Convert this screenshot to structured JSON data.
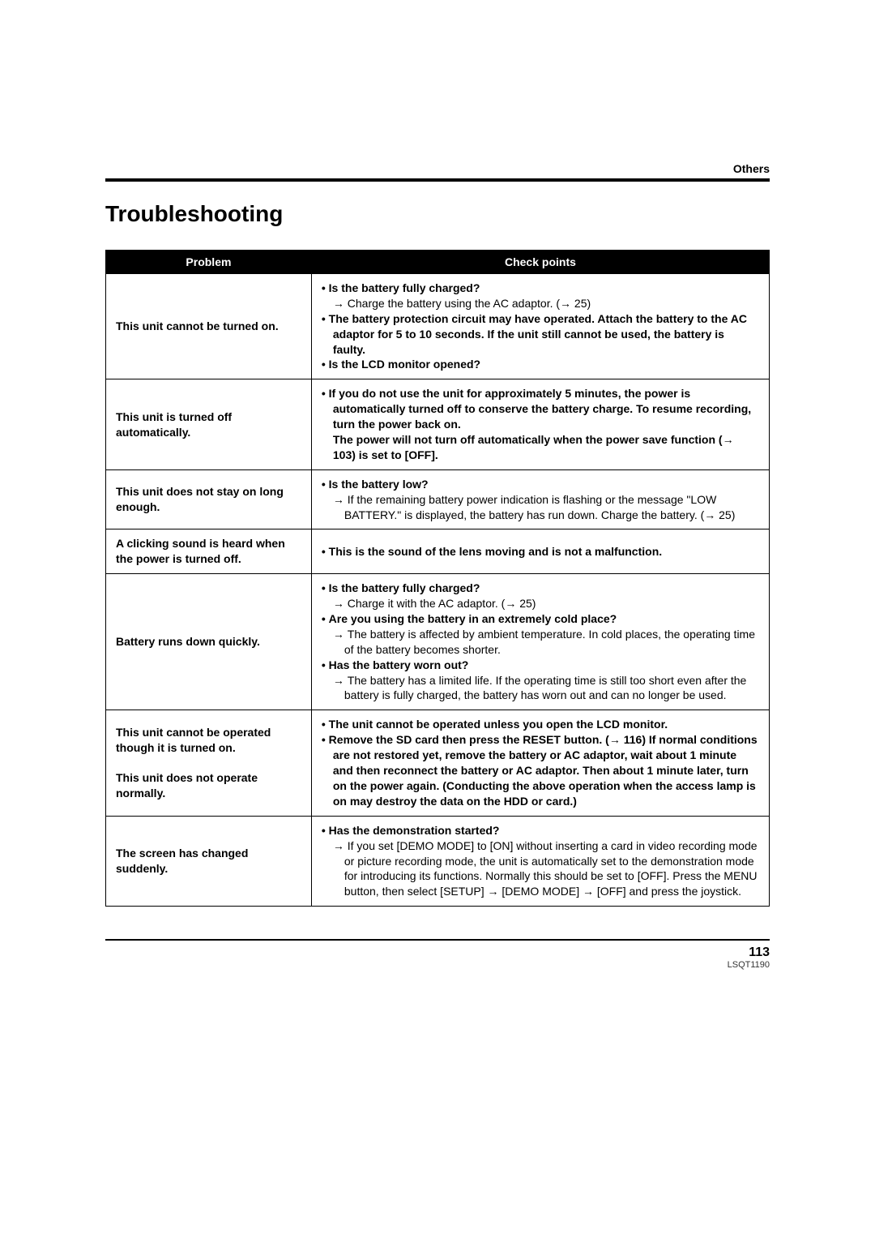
{
  "header_label": "Others",
  "title": "Troubleshooting",
  "columns": {
    "problem": "Problem",
    "checks": "Check points"
  },
  "rows": [
    {
      "problem": "This unit cannot be turned on.",
      "checks": [
        {
          "type": "bold",
          "text": "Is the battery fully charged?"
        },
        {
          "type": "sub",
          "text": "Charge the battery using the AC adaptor. (→ 25)"
        },
        {
          "type": "bold",
          "text": "The battery protection circuit may have operated. Attach the battery to the AC adaptor for 5 to 10 seconds. If the unit still cannot be used, the battery is faulty."
        },
        {
          "type": "bold",
          "text": "Is the LCD monitor opened?"
        }
      ]
    },
    {
      "problem": "This unit is turned off automatically.",
      "checks": [
        {
          "type": "bold",
          "text": "If you do not use the unit for approximately 5 minutes, the power is automatically turned off to conserve the battery charge. To resume recording, turn the power back on.\nThe power will not turn off automatically when the power save function (→ 103) is set to [OFF]."
        }
      ]
    },
    {
      "problem": "This unit does not stay on long enough.",
      "checks": [
        {
          "type": "bold",
          "text": "Is the battery low?"
        },
        {
          "type": "sub",
          "text": "If the remaining battery power indication is flashing or the message \"LOW BATTERY.\" is displayed, the battery has run down. Charge the battery. (→ 25)"
        }
      ]
    },
    {
      "problem": "A clicking sound is heard when the power is turned off.",
      "checks": [
        {
          "type": "bold",
          "text": "This is the sound of the lens moving and is not a malfunction."
        }
      ]
    },
    {
      "problem": "Battery runs down quickly.",
      "checks": [
        {
          "type": "bold",
          "text": "Is the battery fully charged?"
        },
        {
          "type": "sub",
          "text": "Charge it with the AC adaptor. (→ 25)"
        },
        {
          "type": "bold",
          "text": "Are you using the battery in an extremely cold place?"
        },
        {
          "type": "sub",
          "text": "The battery is affected by ambient temperature. In cold places, the operating time of the battery becomes shorter."
        },
        {
          "type": "bold",
          "text": "Has the battery worn out?"
        },
        {
          "type": "sub",
          "text": "The battery has a limited life. If the operating time is still too short even after the battery is fully charged, the battery has worn out and can no longer be used."
        }
      ]
    },
    {
      "problem": "This unit cannot be operated though it is turned on.\n\nThis unit does not operate normally.",
      "checks": [
        {
          "type": "bold",
          "text": "The unit cannot be operated unless you open the LCD monitor."
        },
        {
          "type": "bold",
          "text": "Remove the SD card then press the RESET button. (→ 116) If normal conditions are not restored yet, remove the battery or AC adaptor, wait about 1 minute and then reconnect the battery or AC adaptor. Then about 1 minute later, turn on the power again. (Conducting the above operation when the access lamp is on may destroy the data on the HDD or card.)"
        }
      ]
    },
    {
      "problem": "The screen has changed suddenly.",
      "checks": [
        {
          "type": "bold",
          "text": "Has the demonstration started?"
        },
        {
          "type": "sub",
          "text": "If you set [DEMO MODE] to [ON] without inserting a card in video recording mode or picture recording mode, the unit is automatically set to the demonstration mode for introducing its functions. Normally this should be set to [OFF]. Press the MENU button, then select [SETUP] → [DEMO MODE] → [OFF] and press the joystick."
        }
      ]
    }
  ],
  "footer": {
    "page_number": "113",
    "doc_id": "LSQT1190"
  }
}
